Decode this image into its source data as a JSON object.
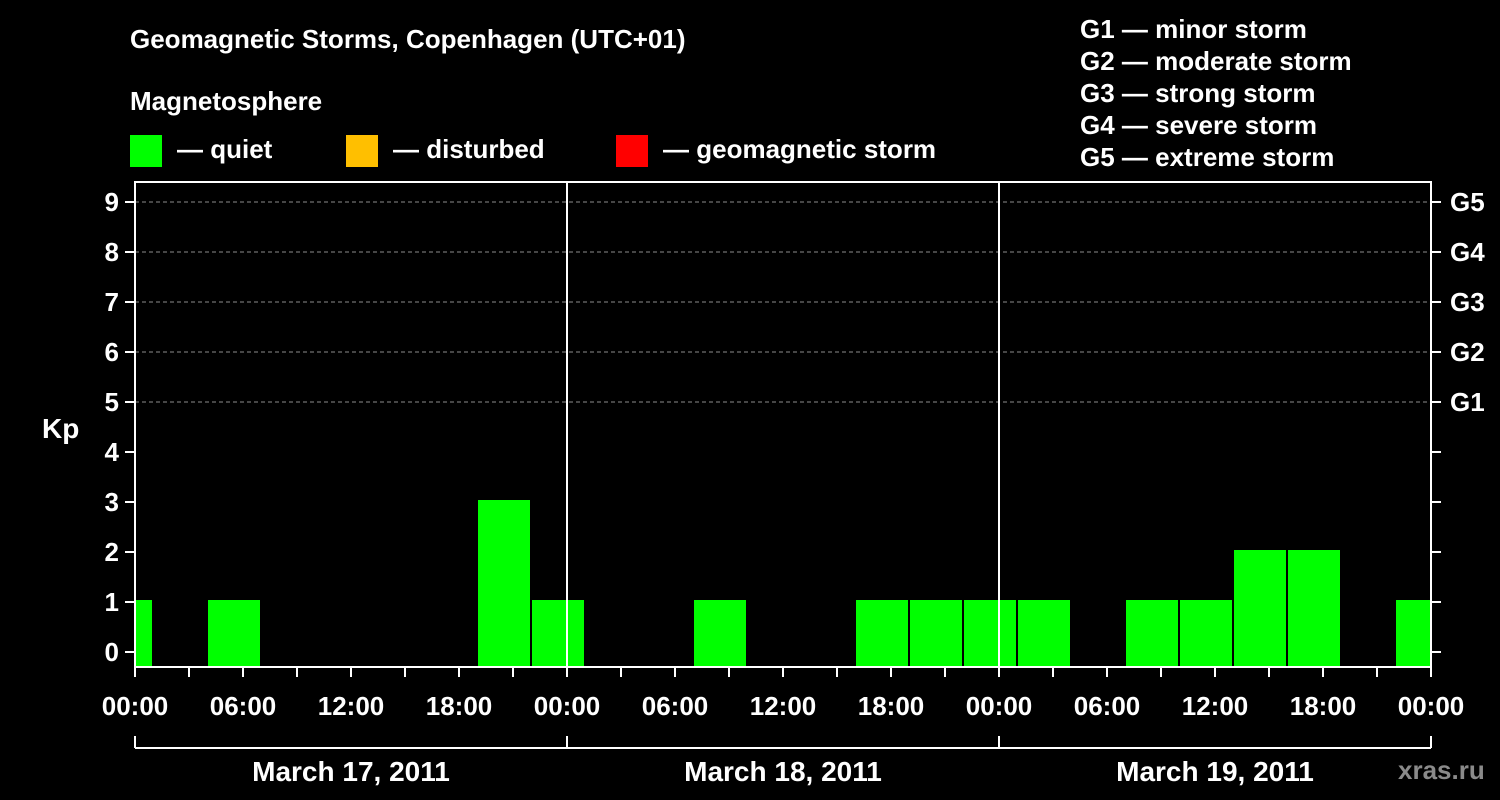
{
  "title": "Geomagnetic Storms, Copenhagen (UTC+01)",
  "legend": {
    "heading": "Magnetosphere",
    "items": [
      {
        "label": "— quiet",
        "color": "#00ff00"
      },
      {
        "label": "— disturbed",
        "color": "#ffbf00"
      },
      {
        "label": "— geomagnetic storm",
        "color": "#ff0000"
      }
    ]
  },
  "storm_scale": [
    "G1 — minor storm",
    "G2 — moderate storm",
    "G3 — strong storm",
    "G4 — severe storm",
    "G5 — extreme storm"
  ],
  "watermark": "xras.ru",
  "chart_data": {
    "type": "bar",
    "title": "Geomagnetic Storms, Copenhagen (UTC+01)",
    "ylabel": "Kp",
    "ylim": [
      0,
      9
    ],
    "yticks": [
      "0",
      "1",
      "2",
      "3",
      "4",
      "5",
      "6",
      "7",
      "8",
      "9"
    ],
    "y2_labels": [
      {
        "kp": 5,
        "label": "G1"
      },
      {
        "kp": 6,
        "label": "G2"
      },
      {
        "kp": 7,
        "label": "G3"
      },
      {
        "kp": 8,
        "label": "G4"
      },
      {
        "kp": 9,
        "label": "G5"
      }
    ],
    "grid": "horizontal dashed at Kp 5-9",
    "x_range_hours": [
      0,
      72
    ],
    "x_tick_labels": [
      "00:00",
      "06:00",
      "12:00",
      "18:00",
      "00:00",
      "06:00",
      "12:00",
      "18:00",
      "00:00",
      "06:00",
      "12:00",
      "18:00",
      "00:00"
    ],
    "days": [
      "March 17, 2011",
      "March 18, 2011",
      "March 19, 2011"
    ],
    "bar_color": "#00ff00",
    "bars": [
      {
        "start_h": 0,
        "end_h": 1,
        "kp": 1
      },
      {
        "start_h": 4,
        "end_h": 7,
        "kp": 1
      },
      {
        "start_h": 19,
        "end_h": 22,
        "kp": 3
      },
      {
        "start_h": 22,
        "end_h": 25,
        "kp": 1
      },
      {
        "start_h": 31,
        "end_h": 34,
        "kp": 1
      },
      {
        "start_h": 40,
        "end_h": 43,
        "kp": 1
      },
      {
        "start_h": 43,
        "end_h": 46,
        "kp": 1
      },
      {
        "start_h": 46,
        "end_h": 49,
        "kp": 1
      },
      {
        "start_h": 49,
        "end_h": 52,
        "kp": 1
      },
      {
        "start_h": 55,
        "end_h": 58,
        "kp": 1
      },
      {
        "start_h": 58,
        "end_h": 61,
        "kp": 1
      },
      {
        "start_h": 61,
        "end_h": 64,
        "kp": 2
      },
      {
        "start_h": 64,
        "end_h": 67,
        "kp": 2
      },
      {
        "start_h": 70,
        "end_h": 72,
        "kp": 1
      }
    ]
  }
}
